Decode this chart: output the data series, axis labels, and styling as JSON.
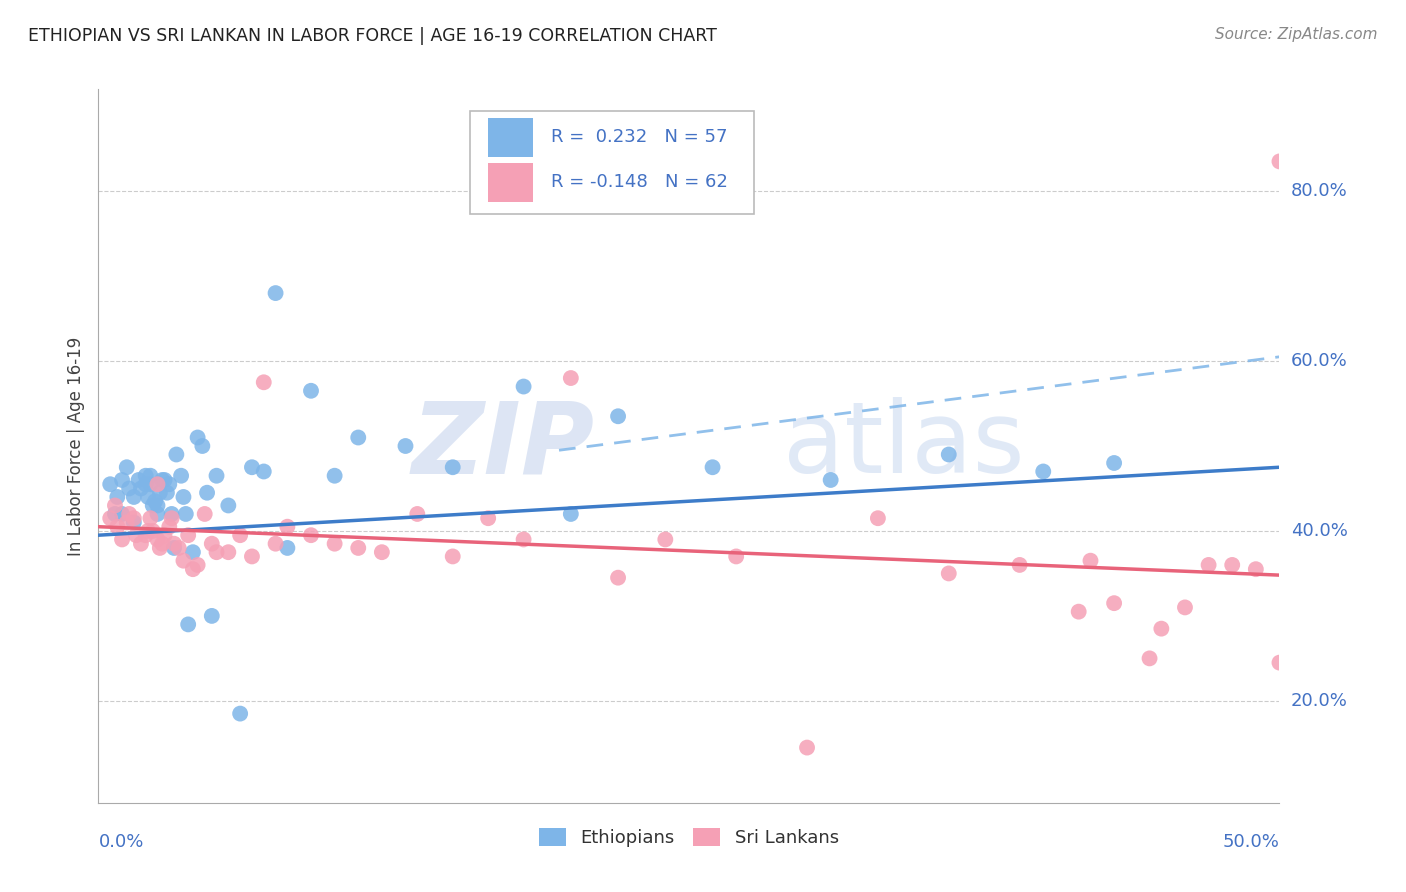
{
  "title": "ETHIOPIAN VS SRI LANKAN IN LABOR FORCE | AGE 16-19 CORRELATION CHART",
  "source": "Source: ZipAtlas.com",
  "ylabel": "In Labor Force | Age 16-19",
  "ytick_labels": [
    "20.0%",
    "40.0%",
    "60.0%",
    "80.0%"
  ],
  "ytick_values": [
    0.2,
    0.4,
    0.6,
    0.8
  ],
  "xlim": [
    0.0,
    0.5
  ],
  "ylim": [
    0.08,
    0.92
  ],
  "legend_blue_r": "R =  0.232",
  "legend_blue_n": "N = 57",
  "legend_pink_r": "R = -0.148",
  "legend_pink_n": "N = 62",
  "blue_color": "#7EB5E8",
  "blue_line_color": "#3D7CC9",
  "pink_color": "#F5A0B5",
  "pink_line_color": "#E8637A",
  "watermark_zip": "ZIP",
  "watermark_atlas": "atlas",
  "watermark_color": "#C8D8F0",
  "eth_blue_line": [
    0.0,
    0.395,
    0.5,
    0.475
  ],
  "sri_pink_line": [
    0.0,
    0.405,
    0.5,
    0.348
  ],
  "dashed_line": [
    0.195,
    0.495,
    0.5,
    0.605
  ],
  "ethiopians_x": [
    0.005,
    0.007,
    0.008,
    0.01,
    0.01,
    0.012,
    0.013,
    0.015,
    0.015,
    0.017,
    0.018,
    0.02,
    0.02,
    0.021,
    0.022,
    0.022,
    0.023,
    0.024,
    0.025,
    0.025,
    0.026,
    0.027,
    0.028,
    0.029,
    0.03,
    0.031,
    0.032,
    0.033,
    0.035,
    0.036,
    0.037,
    0.038,
    0.04,
    0.042,
    0.044,
    0.046,
    0.048,
    0.05,
    0.055,
    0.06,
    0.065,
    0.07,
    0.075,
    0.08,
    0.09,
    0.1,
    0.11,
    0.13,
    0.15,
    0.18,
    0.2,
    0.22,
    0.26,
    0.31,
    0.36,
    0.4,
    0.43
  ],
  "ethiopians_y": [
    0.455,
    0.42,
    0.44,
    0.46,
    0.42,
    0.475,
    0.45,
    0.44,
    0.41,
    0.46,
    0.45,
    0.465,
    0.455,
    0.44,
    0.455,
    0.465,
    0.43,
    0.435,
    0.43,
    0.42,
    0.445,
    0.46,
    0.46,
    0.445,
    0.455,
    0.42,
    0.38,
    0.49,
    0.465,
    0.44,
    0.42,
    0.29,
    0.375,
    0.51,
    0.5,
    0.445,
    0.3,
    0.465,
    0.43,
    0.185,
    0.475,
    0.47,
    0.68,
    0.38,
    0.565,
    0.465,
    0.51,
    0.5,
    0.475,
    0.57,
    0.42,
    0.535,
    0.475,
    0.46,
    0.49,
    0.47,
    0.48
  ],
  "srilankans_x": [
    0.005,
    0.007,
    0.008,
    0.01,
    0.012,
    0.013,
    0.015,
    0.016,
    0.018,
    0.02,
    0.021,
    0.022,
    0.023,
    0.025,
    0.025,
    0.026,
    0.027,
    0.028,
    0.03,
    0.031,
    0.032,
    0.034,
    0.036,
    0.038,
    0.04,
    0.042,
    0.045,
    0.048,
    0.05,
    0.055,
    0.06,
    0.065,
    0.07,
    0.075,
    0.08,
    0.09,
    0.1,
    0.11,
    0.12,
    0.135,
    0.15,
    0.165,
    0.18,
    0.2,
    0.22,
    0.24,
    0.27,
    0.3,
    0.33,
    0.36,
    0.39,
    0.42,
    0.45,
    0.47,
    0.49,
    0.5,
    0.5,
    0.48,
    0.46,
    0.445,
    0.43,
    0.415
  ],
  "srilankans_y": [
    0.415,
    0.43,
    0.405,
    0.39,
    0.41,
    0.42,
    0.415,
    0.395,
    0.385,
    0.395,
    0.4,
    0.415,
    0.4,
    0.455,
    0.39,
    0.38,
    0.385,
    0.395,
    0.405,
    0.415,
    0.385,
    0.38,
    0.365,
    0.395,
    0.355,
    0.36,
    0.42,
    0.385,
    0.375,
    0.375,
    0.395,
    0.37,
    0.575,
    0.385,
    0.405,
    0.395,
    0.385,
    0.38,
    0.375,
    0.42,
    0.37,
    0.415,
    0.39,
    0.58,
    0.345,
    0.39,
    0.37,
    0.145,
    0.415,
    0.35,
    0.36,
    0.365,
    0.285,
    0.36,
    0.355,
    0.245,
    0.835,
    0.36,
    0.31,
    0.25,
    0.315,
    0.305
  ]
}
